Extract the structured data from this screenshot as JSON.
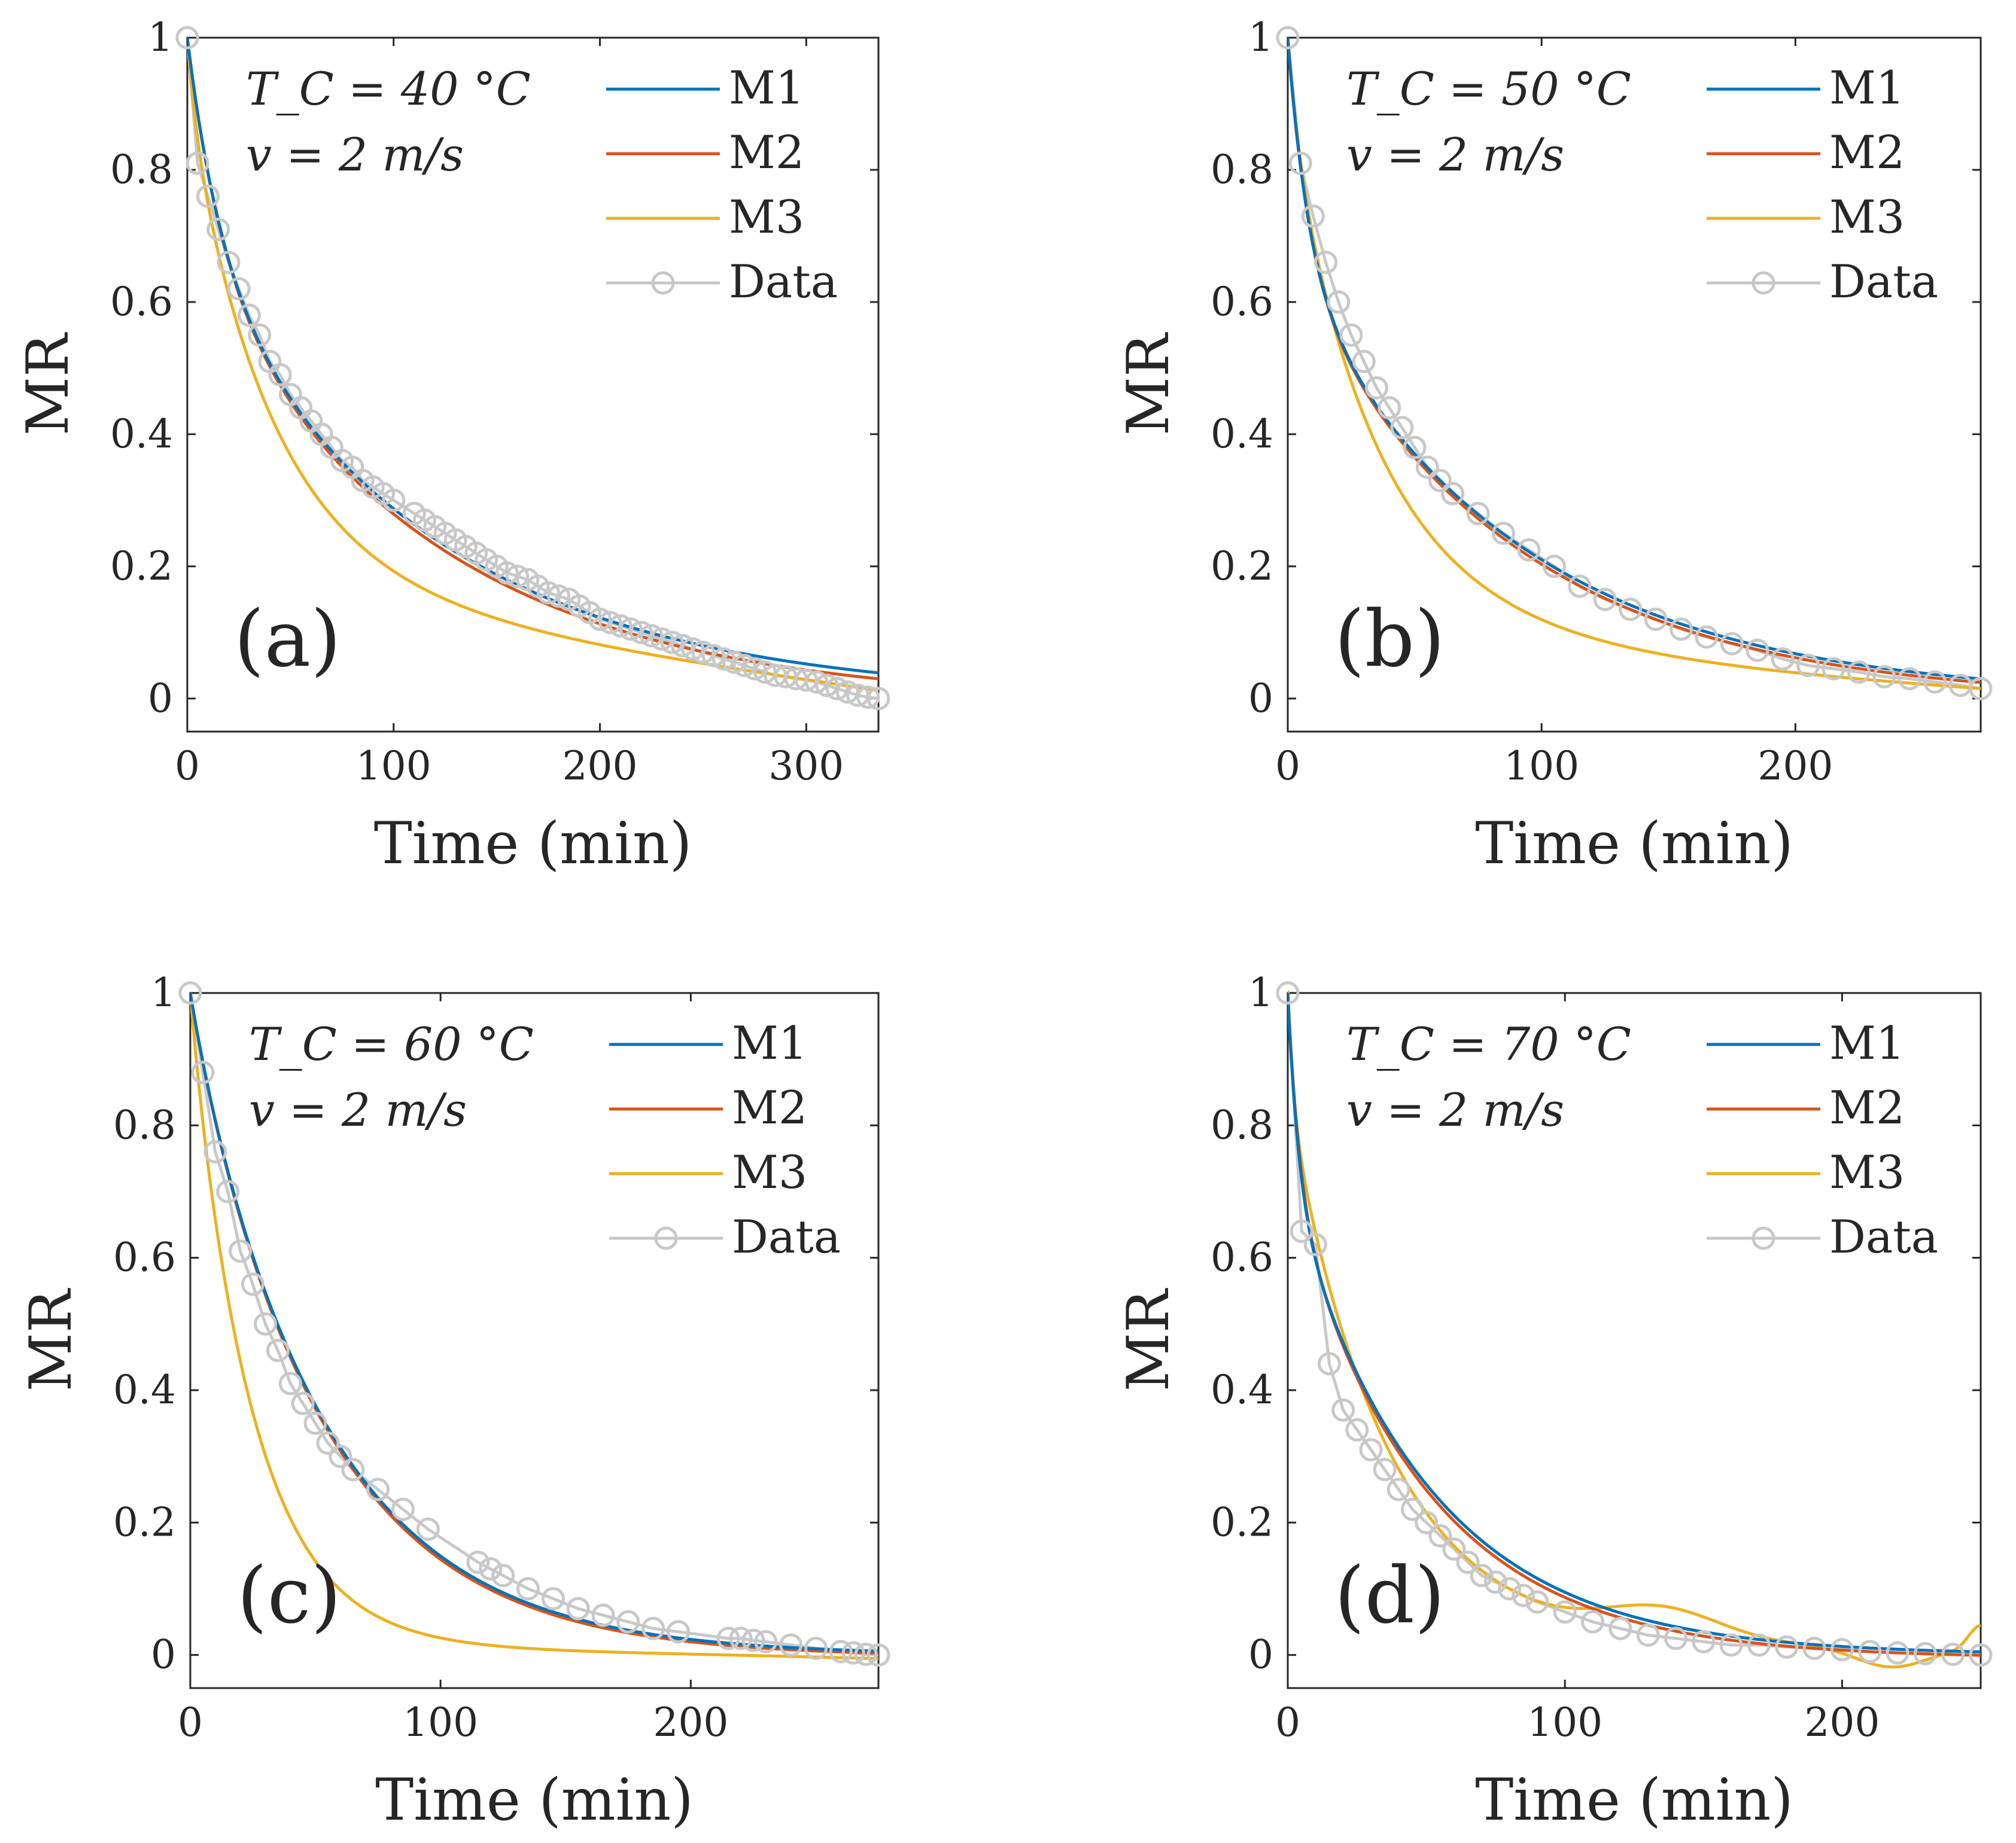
{
  "chart_data": [
    {
      "type": "line",
      "panel": "(a)",
      "annotation": [
        "T_C = 40 °C",
        "v = 2 m/s"
      ],
      "xlabel": "Time (min)",
      "ylabel": "MR",
      "xlim": [
        0,
        335
      ],
      "ylim": [
        -0.05,
        1
      ],
      "xticks": [
        0,
        100,
        200,
        300
      ],
      "yticks": [
        0,
        0.2,
        0.4,
        0.6,
        0.8,
        1
      ],
      "legend": [
        "M1",
        "M2",
        "M3",
        "Data"
      ],
      "series": [
        {
          "name": "M1",
          "model": {
            "kind": "twoterm",
            "params": [
              0.33,
              0.06,
              0.67,
              0.0085
            ]
          }
        },
        {
          "name": "M2",
          "model": {
            "kind": "logistic",
            "params": [
              0.33,
              0.06,
              0.67,
              0.0086,
              -0.008
            ]
          }
        },
        {
          "name": "M3",
          "model": {
            "kind": "poly",
            "params": [
              0.9,
              0.72,
              0.12,
              0.026,
              0.3,
              0.0055,
              -0.02
            ]
          }
        },
        {
          "name": "Data",
          "x": [
            0,
            5,
            10,
            15,
            20,
            25,
            30,
            35,
            40,
            45,
            50,
            55,
            60,
            65,
            70,
            75,
            80,
            85,
            90,
            95,
            100,
            110,
            115,
            120,
            125,
            130,
            135,
            140,
            145,
            150,
            155,
            160,
            165,
            170,
            175,
            180,
            185,
            190,
            195,
            200,
            205,
            210,
            215,
            220,
            225,
            230,
            235,
            240,
            245,
            250,
            255,
            260,
            265,
            270,
            275,
            280,
            285,
            290,
            295,
            300,
            305,
            310,
            315,
            320,
            325,
            330,
            335
          ],
          "y": [
            1,
            0.81,
            0.76,
            0.71,
            0.66,
            0.62,
            0.58,
            0.55,
            0.51,
            0.49,
            0.46,
            0.44,
            0.42,
            0.4,
            0.38,
            0.36,
            0.35,
            0.33,
            0.32,
            0.31,
            0.3,
            0.28,
            0.27,
            0.26,
            0.25,
            0.24,
            0.23,
            0.22,
            0.21,
            0.2,
            0.19,
            0.185,
            0.18,
            0.17,
            0.16,
            0.155,
            0.15,
            0.14,
            0.13,
            0.12,
            0.115,
            0.11,
            0.105,
            0.1,
            0.095,
            0.09,
            0.085,
            0.08,
            0.075,
            0.07,
            0.065,
            0.06,
            0.055,
            0.05,
            0.045,
            0.04,
            0.035,
            0.033,
            0.03,
            0.028,
            0.025,
            0.02,
            0.015,
            0.01,
            0.005,
            0.002,
            0
          ]
        }
      ]
    },
    {
      "type": "line",
      "panel": "(b)",
      "annotation": [
        "T_C = 50 °C",
        "v = 2 m/s"
      ],
      "xlabel": "Time (min)",
      "ylabel": "MR",
      "xlim": [
        0,
        273
      ],
      "ylim": [
        -0.05,
        1
      ],
      "xticks": [
        0,
        100,
        200
      ],
      "yticks": [
        0,
        0.2,
        0.4,
        0.6,
        0.8,
        1
      ],
      "legend": [
        "M1",
        "M2",
        "M3",
        "Data"
      ],
      "series": [
        {
          "name": "M1",
          "model": {
            "kind": "twoterm",
            "params": [
              0.35,
              0.12,
              0.65,
              0.0113
            ]
          }
        },
        {
          "name": "M2",
          "model": {
            "kind": "logistic",
            "params": [
              0.35,
              0.12,
              0.65,
              0.0115,
              -0.004
            ]
          }
        },
        {
          "name": "M3",
          "model": {
            "kind": "poly",
            "params": [
              0.88,
              0.8,
              0.05,
              0.03,
              0.3,
              0.0073,
              -0.012
            ]
          }
        },
        {
          "name": "Data",
          "x": [
            0,
            5,
            10,
            15,
            20,
            25,
            30,
            35,
            40,
            45,
            50,
            55,
            60,
            65,
            75,
            85,
            95,
            105,
            115,
            125,
            135,
            145,
            155,
            165,
            175,
            185,
            195,
            205,
            215,
            225,
            235,
            245,
            255,
            265,
            273
          ],
          "y": [
            1,
            0.81,
            0.73,
            0.66,
            0.6,
            0.55,
            0.51,
            0.47,
            0.44,
            0.41,
            0.38,
            0.35,
            0.33,
            0.31,
            0.28,
            0.25,
            0.225,
            0.2,
            0.17,
            0.15,
            0.135,
            0.12,
            0.105,
            0.093,
            0.083,
            0.073,
            0.06,
            0.05,
            0.045,
            0.04,
            0.033,
            0.03,
            0.025,
            0.02,
            0.015
          ]
        }
      ]
    },
    {
      "type": "line",
      "panel": "(c)",
      "annotation": [
        "T_C = 60 °C",
        "v = 2 m/s"
      ],
      "xlabel": "Time (min)",
      "ylabel": "MR",
      "xlim": [
        0,
        275
      ],
      "ylim": [
        -0.05,
        1
      ],
      "xticks": [
        0,
        100,
        200
      ],
      "yticks": [
        0,
        0.2,
        0.4,
        0.6,
        0.8,
        1
      ],
      "legend": [
        "M1",
        "M2",
        "M3",
        "Data"
      ],
      "series": [
        {
          "name": "M1",
          "model": {
            "kind": "twoterm",
            "params": [
              0.05,
              0.1,
              0.95,
              0.0185
            ]
          }
        },
        {
          "name": "M2",
          "model": {
            "kind": "logistic",
            "params": [
              0.05,
              0.1,
              0.95,
              0.0187,
              -0.003
            ]
          }
        },
        {
          "name": "M3",
          "model": {
            "kind": "poly",
            "params": [
              0.97,
              0.98,
              0.0,
              0.04,
              0.3,
              0.008,
              -0.01
            ]
          }
        },
        {
          "name": "Data",
          "x": [
            0,
            5,
            10,
            15,
            20,
            25,
            30,
            35,
            40,
            45,
            50,
            55,
            60,
            65,
            75,
            85,
            95,
            115,
            120,
            125,
            135,
            145,
            155,
            165,
            175,
            185,
            195,
            215,
            220,
            225,
            230,
            240,
            250,
            260,
            265,
            270,
            275
          ],
          "y": [
            1,
            0.88,
            0.76,
            0.7,
            0.61,
            0.56,
            0.5,
            0.46,
            0.41,
            0.38,
            0.35,
            0.32,
            0.3,
            0.28,
            0.25,
            0.22,
            0.19,
            0.14,
            0.13,
            0.12,
            0.1,
            0.085,
            0.07,
            0.06,
            0.05,
            0.04,
            0.035,
            0.025,
            0.025,
            0.022,
            0.02,
            0.015,
            0.01,
            0.005,
            0.003,
            0.001,
            0
          ]
        }
      ]
    },
    {
      "type": "line",
      "panel": "(d)",
      "annotation": [
        "T_C = 70 °C",
        "v = 2 m/s"
      ],
      "xlabel": "Time (min)",
      "ylabel": "MR",
      "xlim": [
        0,
        250
      ],
      "ylim": [
        -0.05,
        1
      ],
      "xticks": [
        0,
        100,
        200
      ],
      "yticks": [
        0,
        0.2,
        0.4,
        0.6,
        0.8,
        1
      ],
      "legend": [
        "M1",
        "M2",
        "M3",
        "Data"
      ],
      "series": [
        {
          "name": "M1",
          "model": {
            "kind": "twoterm",
            "params": [
              0.3,
              0.25,
              0.7,
              0.02
            ]
          }
        },
        {
          "name": "M2",
          "model": {
            "kind": "logistic",
            "params": [
              0.3,
              0.23,
              0.7,
              0.0205,
              -0.005
            ]
          }
        },
        {
          "name": "M3",
          "model": {
            "kind": "wobble",
            "params": [
              0.83,
              0.04,
              0.0,
              0.07,
              0.045
            ]
          }
        },
        {
          "name": "Data",
          "x": [
            0,
            5,
            10,
            15,
            20,
            25,
            30,
            35,
            40,
            45,
            50,
            55,
            60,
            65,
            70,
            75,
            80,
            85,
            90,
            100,
            110,
            120,
            130,
            140,
            150,
            160,
            170,
            180,
            190,
            200,
            210,
            220,
            230,
            240,
            250
          ],
          "y": [
            1,
            0.64,
            0.62,
            0.44,
            0.37,
            0.34,
            0.31,
            0.28,
            0.25,
            0.22,
            0.2,
            0.18,
            0.16,
            0.14,
            0.12,
            0.11,
            0.1,
            0.09,
            0.08,
            0.065,
            0.05,
            0.04,
            0.03,
            0.025,
            0.02,
            0.015,
            0.015,
            0.012,
            0.01,
            0.008,
            0.005,
            0.003,
            0.002,
            0.001,
            0
          ]
        }
      ]
    }
  ],
  "colors": {
    "M1": "#0072bd",
    "M2": "#d95319",
    "M3": "#edb120",
    "Data": "#c8c8c8",
    "axis": "#262626"
  }
}
